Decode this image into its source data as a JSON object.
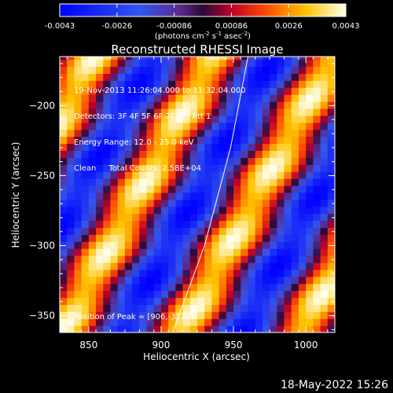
{
  "chart_data": {
    "type": "heatmap",
    "title": "Reconstructed RHESSI Image",
    "xlabel": "Heliocentric X (arcsec)",
    "ylabel": "Heliocentric Y (arcsec)",
    "xlim": [
      830,
      1020
    ],
    "ylim": [
      -362,
      -165
    ],
    "xticks": [
      850,
      900,
      950,
      1000
    ],
    "yticks": [
      -200,
      -250,
      -300,
      -350
    ],
    "colorbar": {
      "ticks": [
        "-0.0043",
        "-0.0026",
        "-0.00086",
        "0.00086",
        "0.0026",
        "0.0043"
      ],
      "unit_label": "(photons cm",
      "unit_sup1": "-2",
      "unit_mid": " s",
      "unit_sup2": "-1",
      "unit_mid2": " asec",
      "unit_sup3": "-2",
      "unit_end": ")",
      "range": [
        -0.0043,
        0.0043
      ]
    },
    "annotations": [
      "19-Nov-2013 11:26:04.000 to 11:32:04.000",
      "Detectors: 3F 4F 5F 6F 7F 8F, Att 1",
      "Energy Range: 12.0 - 25.0 keV",
      "Clean     Total Counts: 2.58E+04"
    ],
    "peak_label": "Position of Peak = [906,-312]",
    "peak": [
      906,
      -312
    ],
    "limb_arc": [
      [
        908,
        -362
      ],
      [
        930,
        -300
      ],
      [
        948,
        -230
      ],
      [
        960,
        -165
      ]
    ],
    "fringes": {
      "angle_deg": 62,
      "period_arcsec": 73,
      "bright_offsets_arcsec": [
        -110,
        -37,
        36,
        109
      ]
    }
  },
  "timestamp": "18-May-2022 15:26"
}
